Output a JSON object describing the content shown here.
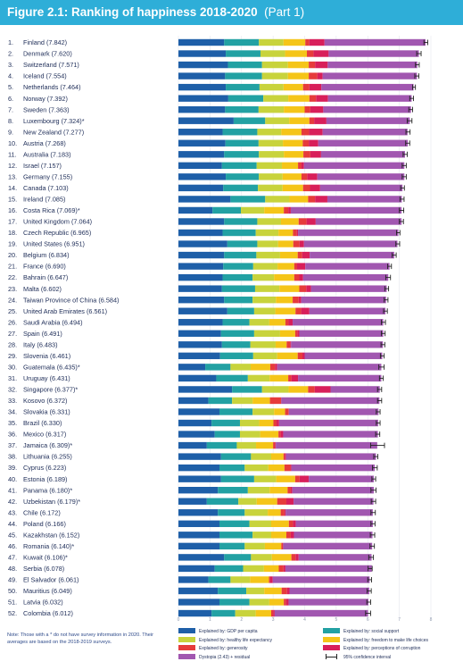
{
  "figure": {
    "title_bold": "Figure 2.1: Ranking of happiness 2018-2020",
    "title_part": "(Part 1)"
  },
  "note": "Note: Those with a * do not have survey information in 2020. Their averages are based on the 2018-2019 surveys.",
  "colors": {
    "header": "#2eaed8",
    "gdp": "#1e5fa8",
    "social": "#22a1a3",
    "health": "#c8d33c",
    "freedom": "#f5c518",
    "generosity": "#e63b3b",
    "corruption": "#d81f5a",
    "dystopia": "#a157b0",
    "ci": "#222222"
  },
  "legend": [
    {
      "key": "gdp",
      "label": "Explained by: GDP per capita"
    },
    {
      "key": "social",
      "label": "Explained by: social support"
    },
    {
      "key": "health",
      "label": "Explained by: healthy life expectancy"
    },
    {
      "key": "freedom",
      "label": "Explained by: freedom to make life choices"
    },
    {
      "key": "generosity",
      "label": "Explained by: generosity"
    },
    {
      "key": "corruption",
      "label": "Explained by: perceptions of corruption"
    },
    {
      "key": "dystopia",
      "label": "Dystopia (2.43) + residual"
    },
    {
      "key": "ci",
      "label": "95% confidence interval"
    }
  ],
  "chart_data": {
    "type": "bar",
    "orientation": "horizontal",
    "stacked": true,
    "title": "Ranking of happiness 2018-2020 (Part 1)",
    "xlim": [
      0,
      8
    ],
    "xticks": [
      0,
      1,
      2,
      3,
      4,
      5,
      6,
      7,
      8
    ],
    "categories": [
      "1. Finland (7.842)",
      "2. Denmark (7.620)",
      "3. Switzerland (7.571)",
      "4. Iceland (7.554)",
      "5. Netherlands (7.464)",
      "6. Norway (7.392)",
      "7. Sweden (7.363)",
      "8. Luxembourg (7.324)*",
      "9. New Zealand (7.277)",
      "10. Austria (7.268)",
      "11. Australia (7.183)",
      "12. Israel (7.157)",
      "13. Germany (7.155)",
      "14. Canada (7.103)",
      "15. Ireland (7.085)",
      "16. Costa Rica (7.069)*",
      "17. United Kingdom (7.064)",
      "18. Czech Republic (6.965)",
      "19. United States (6.951)",
      "20. Belgium (6.834)",
      "21. France (6.690)",
      "22. Bahrain (6.647)",
      "23. Malta (6.602)",
      "24. Taiwan Province of China (6.584)",
      "25. United Arab Emirates (6.561)",
      "26. Saudi Arabia (6.494)",
      "27. Spain (6.491)",
      "28. Italy (6.483)",
      "29. Slovenia (6.461)",
      "30. Guatemala (6.435)*",
      "31. Uruguay (6.431)",
      "32. Singapore (6.377)*",
      "33. Kosovo (6.372)",
      "34. Slovakia (6.331)",
      "35. Brazil (6.330)",
      "36. Mexico (6.317)",
      "37. Jamaica (6.309)*",
      "38. Lithuania (6.255)",
      "39. Cyprus (6.223)",
      "40. Estonia (6.189)",
      "41. Panama (6.180)*",
      "42. Uzbekistan (6.179)*",
      "43. Chile (6.172)",
      "44. Poland (6.166)",
      "45. Kazakhstan (6.152)",
      "46. Romania (6.140)*",
      "47. Kuwait (6.106)*",
      "48. Serbia (6.078)",
      "49. El Salvador (6.061)",
      "50. Mauritius (6.049)",
      "51. Latvia (6.032)",
      "52. Colombia (6.012)"
    ],
    "series": [
      {
        "name": "Explained by: GDP per capita",
        "values": [
          1.45,
          1.5,
          1.57,
          1.48,
          1.5,
          1.58,
          1.48,
          1.75,
          1.4,
          1.49,
          1.45,
          1.38,
          1.5,
          1.42,
          1.65,
          1.08,
          1.45,
          1.4,
          1.55,
          1.45,
          1.42,
          1.4,
          1.38,
          1.45,
          1.55,
          1.4,
          1.35,
          1.38,
          1.32,
          0.85,
          1.2,
          1.7,
          0.95,
          1.3,
          1.05,
          1.15,
          0.9,
          1.35,
          1.3,
          1.35,
          1.25,
          0.9,
          1.25,
          1.3,
          1.3,
          1.3,
          1.45,
          1.15,
          0.95,
          1.25,
          1.3,
          1.05
        ]
      },
      {
        "name": "Explained by: social support",
        "values": [
          1.1,
          1.1,
          1.08,
          1.17,
          1.07,
          1.11,
          1.06,
          1.0,
          1.1,
          1.05,
          1.1,
          1.1,
          1.05,
          1.1,
          1.1,
          0.9,
          1.05,
          1.05,
          0.95,
          1.02,
          0.95,
          0.95,
          1.05,
          0.9,
          0.85,
          0.85,
          1.05,
          0.9,
          1.05,
          0.8,
          1.0,
          0.95,
          0.75,
          1.05,
          0.9,
          0.8,
          0.95,
          0.95,
          0.8,
          1.05,
          0.95,
          1.0,
          0.85,
          0.95,
          1.05,
          0.8,
          0.85,
          0.9,
          0.7,
          0.9,
          0.95,
          0.75
        ]
      },
      {
        "name": "Explained by: healthy life expectancy",
        "values": [
          0.78,
          0.78,
          0.82,
          0.82,
          0.76,
          0.79,
          0.8,
          0.76,
          0.76,
          0.77,
          0.79,
          0.8,
          0.75,
          0.78,
          0.77,
          0.74,
          0.75,
          0.72,
          0.66,
          0.75,
          0.77,
          0.68,
          0.77,
          0.74,
          0.67,
          0.63,
          0.82,
          0.8,
          0.76,
          0.64,
          0.69,
          0.84,
          0.65,
          0.68,
          0.61,
          0.64,
          0.61,
          0.64,
          0.75,
          0.7,
          0.69,
          0.58,
          0.73,
          0.69,
          0.59,
          0.64,
          0.66,
          0.66,
          0.62,
          0.57,
          0.63,
          0.65
        ]
      },
      {
        "name": "Explained by: freedom to make life choices",
        "values": [
          0.69,
          0.69,
          0.66,
          0.66,
          0.62,
          0.67,
          0.66,
          0.64,
          0.64,
          0.63,
          0.62,
          0.51,
          0.6,
          0.65,
          0.59,
          0.62,
          0.56,
          0.46,
          0.48,
          0.56,
          0.53,
          0.64,
          0.63,
          0.53,
          0.64,
          0.51,
          0.48,
          0.35,
          0.65,
          0.62,
          0.59,
          0.62,
          0.55,
          0.35,
          0.45,
          0.58,
          0.54,
          0.39,
          0.51,
          0.6,
          0.57,
          0.65,
          0.41,
          0.56,
          0.48,
          0.52,
          0.62,
          0.47,
          0.6,
          0.55,
          0.46,
          0.49
        ]
      },
      {
        "name": "Explained by: generosity",
        "values": [
          0.13,
          0.21,
          0.2,
          0.27,
          0.2,
          0.21,
          0.18,
          0.15,
          0.24,
          0.19,
          0.22,
          0.11,
          0.18,
          0.22,
          0.22,
          0.14,
          0.25,
          0.12,
          0.2,
          0.14,
          0.09,
          0.16,
          0.22,
          0.19,
          0.18,
          0.1,
          0.07,
          0.11,
          0.15,
          0.15,
          0.1,
          0.21,
          0.35,
          0.11,
          0.1,
          0.07,
          0.06,
          0.04,
          0.19,
          0.14,
          0.1,
          0.29,
          0.12,
          0.13,
          0.14,
          0.05,
          0.13,
          0.15,
          0.03,
          0.17,
          0.07,
          0.06
        ]
      },
      {
        "name": "Explained by: perceptions of corruption",
        "values": [
          0.48,
          0.48,
          0.4,
          0.17,
          0.38,
          0.38,
          0.41,
          0.39,
          0.43,
          0.3,
          0.34,
          0.08,
          0.32,
          0.32,
          0.39,
          0.08,
          0.29,
          0.04,
          0.14,
          0.24,
          0.26,
          0.12,
          0.15,
          0.08,
          0.26,
          0.13,
          0.06,
          0.03,
          0.07,
          0.07,
          0.21,
          0.5,
          0.01,
          0.01,
          0.08,
          0.08,
          0.03,
          0.04,
          0.03,
          0.29,
          0.05,
          0.23,
          0.04,
          0.09,
          0.1,
          0.01,
          0.1,
          0.06,
          0.09,
          0.08,
          0.08,
          0.05
        ]
      },
      {
        "name": "Dystopia (2.43) + residual",
        "values": [
          3.2,
          2.86,
          2.84,
          2.99,
          2.92,
          2.65,
          2.78,
          2.64,
          2.69,
          2.84,
          2.66,
          3.18,
          2.76,
          2.61,
          2.36,
          3.51,
          2.72,
          3.18,
          2.96,
          2.68,
          2.67,
          2.7,
          2.4,
          2.69,
          2.41,
          2.87,
          2.66,
          2.91,
          2.46,
          3.3,
          2.64,
          1.56,
          3.11,
          2.84,
          3.14,
          3.0,
          3.21,
          2.85,
          2.64,
          2.06,
          2.58,
          2.53,
          2.76,
          2.44,
          2.49,
          2.82,
          2.31,
          2.74,
          3.07,
          2.53,
          2.53,
          2.96
        ]
      }
    ],
    "confidence_interval": {
      "lower": [
        7.78,
        7.55,
        7.51,
        7.49,
        7.42,
        7.33,
        7.3,
        7.25,
        7.21,
        7.2,
        7.12,
        7.09,
        7.09,
        7.04,
        7.02,
        7.0,
        7.0,
        6.91,
        6.89,
        6.77,
        6.63,
        6.57,
        6.54,
        6.52,
        6.5,
        6.43,
        6.43,
        6.42,
        6.4,
        6.35,
        6.37,
        6.31,
        6.31,
        6.27,
        6.27,
        6.25,
        6.09,
        6.19,
        6.15,
        6.13,
        6.1,
        6.11,
        6.1,
        6.1,
        6.08,
        6.07,
        6.03,
        6.01,
        6.0,
        5.98,
        5.97,
        5.93
      ],
      "upper": [
        7.9,
        7.69,
        7.63,
        7.62,
        7.51,
        7.45,
        7.42,
        7.4,
        7.34,
        7.33,
        7.25,
        7.22,
        7.22,
        7.16,
        7.15,
        7.14,
        7.13,
        7.02,
        7.01,
        6.9,
        6.75,
        6.72,
        6.66,
        6.64,
        6.62,
        6.56,
        6.55,
        6.54,
        6.52,
        6.52,
        6.49,
        6.44,
        6.44,
        6.39,
        6.39,
        6.38,
        6.53,
        6.32,
        6.3,
        6.25,
        6.26,
        6.25,
        6.24,
        6.23,
        6.22,
        6.21,
        6.18,
        6.14,
        6.12,
        6.11,
        6.09,
        6.09
      ]
    }
  }
}
